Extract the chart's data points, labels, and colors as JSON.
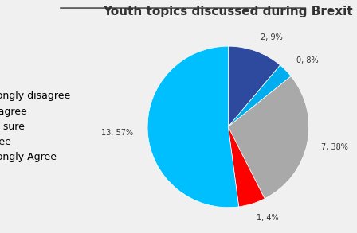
{
  "title": "Youth topics discussed during Brexit",
  "labels": [
    "Strongly disagree",
    "Disagree",
    "Not sure",
    "Agree",
    "Strongly Agree"
  ],
  "values": [
    2.9,
    0.8,
    7.38,
    1.4,
    13.57
  ],
  "colors": [
    "#2E4A9E",
    "#00AEEF",
    "#A9A9A9",
    "#FF0000",
    "#00BFFF"
  ],
  "pct_labels": [
    "2, 9%",
    "0, 8%",
    "7, 38%",
    "1, 4%",
    "13, 57%"
  ],
  "background_color": "#f0f0f0",
  "title_fontsize": 11,
  "legend_fontsize": 9,
  "startangle": 90
}
